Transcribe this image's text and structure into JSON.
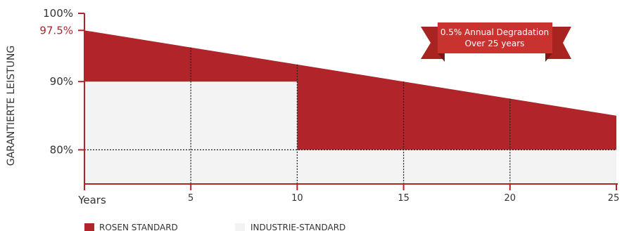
{
  "chart_data": {
    "type": "area",
    "ylabel": "GARANTIERTE LEISTUNG",
    "xlabel": "Years",
    "x_ticks": [
      5,
      10,
      15,
      20,
      25
    ],
    "y_ticks": [
      {
        "value": 100,
        "label": "100%"
      },
      {
        "value": 97.5,
        "label": "97.5%",
        "highlight": true
      },
      {
        "value": 90,
        "label": "90%"
      },
      {
        "value": 80,
        "label": "80%"
      }
    ],
    "xlim": [
      0,
      25
    ],
    "ylim": [
      75,
      100
    ],
    "series": [
      {
        "name": "ROSEN STANDARD",
        "color": "#b0242a",
        "x": [
          0,
          5,
          10,
          15,
          20,
          25
        ],
        "y": [
          97.5,
          95,
          92.5,
          90,
          87.5,
          85
        ]
      },
      {
        "name": "INDUSTRIE-STANDARD",
        "color": "#f3f3f3",
        "x": [
          0,
          10,
          10,
          25
        ],
        "y": [
          90,
          90,
          80,
          80
        ]
      }
    ],
    "annotation": {
      "line1": "0.5% Annual Degradation",
      "line2": "Over 25 years",
      "color": "#c8322f"
    },
    "legend": [
      {
        "label": "ROSEN STANDARD",
        "color": "#b0242a"
      },
      {
        "label": "INDUSTRIE-STANDARD",
        "color": "#f3f3f3"
      }
    ]
  }
}
